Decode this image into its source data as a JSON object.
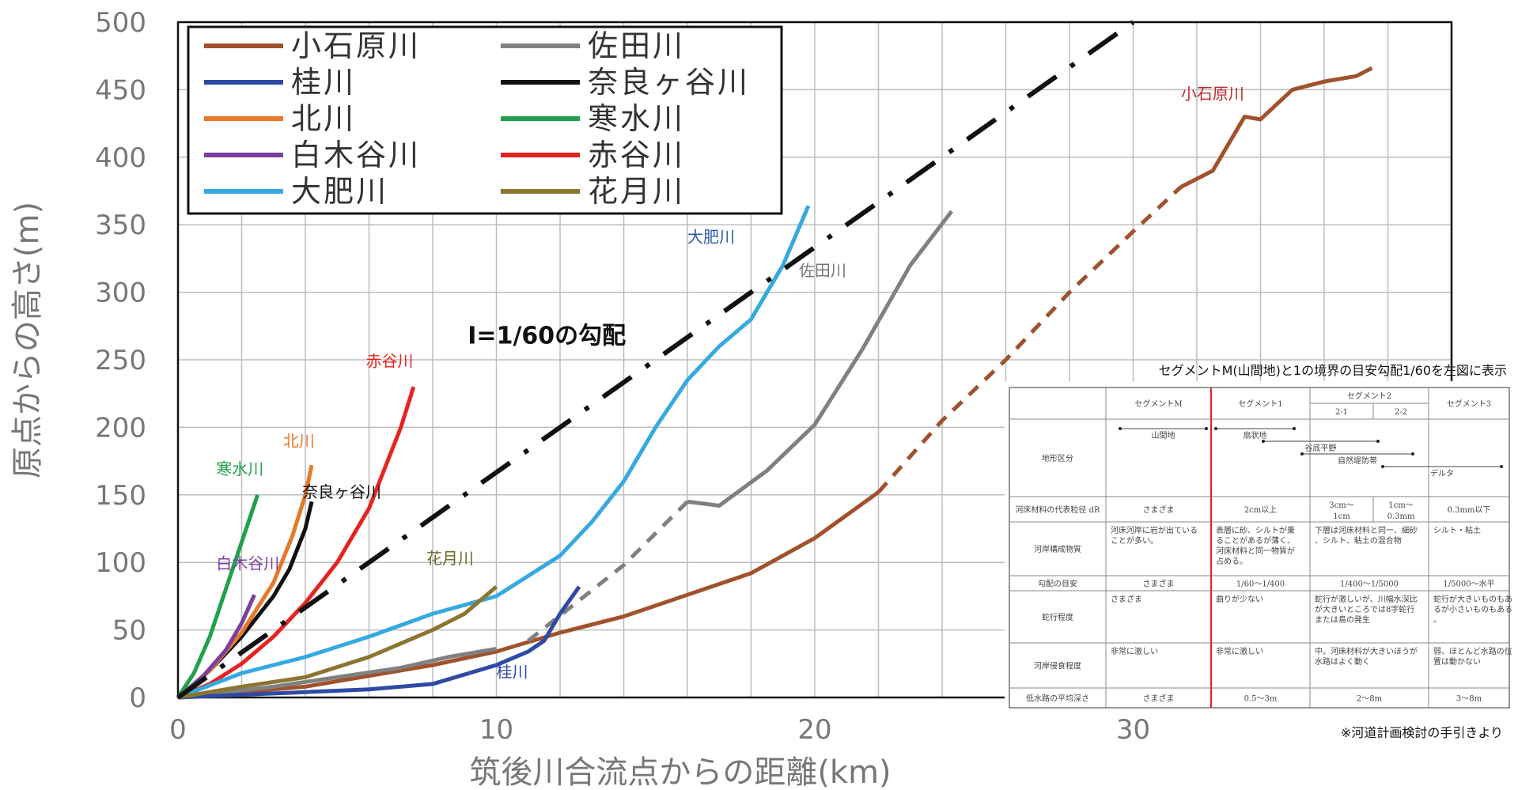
{
  "chart_data": {
    "type": "line",
    "xlabel": "筑後川合流点からの距離(km)",
    "ylabel": "原点からの高さ(m)",
    "xlim": [
      0,
      40
    ],
    "ylim": [
      0,
      500
    ],
    "xticks": [
      0,
      10,
      20,
      30
    ],
    "yticks": [
      0,
      50,
      100,
      150,
      200,
      250,
      300,
      350,
      400,
      450,
      500
    ],
    "grid": true,
    "legend_position": "top-left",
    "series": [
      {
        "name": "小石原川",
        "color": "#a0522d",
        "x": [
          0,
          2,
          4,
          6,
          8,
          10,
          12,
          14,
          16,
          18,
          20,
          21,
          22
        ],
        "y": [
          0,
          4,
          8,
          16,
          24,
          34,
          48,
          60,
          76,
          92,
          118,
          135,
          152
        ],
        "dashed_x": [
          22,
          24,
          26,
          28,
          30,
          31.5
        ],
        "dashed_y": [
          152,
          205,
          250,
          300,
          345,
          378
        ],
        "solid2_x": [
          31.5,
          32.5,
          33.5,
          34,
          35,
          36,
          37,
          37.5
        ],
        "solid2_y": [
          378,
          390,
          430,
          428,
          450,
          456,
          460,
          466
        ]
      },
      {
        "name": "佐田川",
        "color": "#808080",
        "x": [
          0,
          3,
          5,
          7,
          8.5,
          10,
          11,
          13,
          15,
          17,
          18.5,
          20,
          21.5,
          23,
          24.3
        ],
        "y": [
          0,
          8,
          15,
          22,
          30,
          36,
          42,
          68,
          108,
          142,
          168,
          202,
          258,
          320,
          360
        ],
        "dashed_x": [
          11,
          12.5,
          14,
          16
        ],
        "dashed_y": [
          42,
          70,
          98,
          145
        ],
        "dashed_start_index": 5
      },
      {
        "name": "桂川",
        "color": "#2e4aa5",
        "x": [
          0,
          3,
          6,
          8,
          10,
          11,
          11.5,
          12,
          12.6
        ],
        "y": [
          0,
          3,
          6,
          10,
          24,
          34,
          42,
          62,
          82
        ]
      },
      {
        "name": "奈良ヶ谷川",
        "color": "#111111",
        "x": [
          0,
          1,
          2,
          3,
          3.5,
          4,
          4.2
        ],
        "y": [
          0,
          20,
          45,
          75,
          95,
          125,
          145
        ]
      },
      {
        "name": "北川",
        "color": "#e8782a",
        "x": [
          0,
          1,
          2,
          3,
          3.6,
          4,
          4.2
        ],
        "y": [
          0,
          20,
          48,
          85,
          120,
          150,
          172
        ]
      },
      {
        "name": "寒水川",
        "color": "#22a04a",
        "x": [
          0,
          0.5,
          1,
          1.5,
          2,
          2.5
        ],
        "y": [
          0,
          18,
          45,
          80,
          115,
          150
        ]
      },
      {
        "name": "白木谷川",
        "color": "#7b3fa0",
        "x": [
          0,
          0.8,
          1.5,
          2,
          2.4
        ],
        "y": [
          0,
          16,
          35,
          55,
          76
        ]
      },
      {
        "name": "赤谷川",
        "color": "#e52420",
        "x": [
          0,
          1,
          2,
          3,
          4,
          5,
          6,
          6.5,
          7,
          7.4
        ],
        "y": [
          0,
          10,
          25,
          45,
          70,
          100,
          140,
          170,
          200,
          230
        ]
      },
      {
        "name": "大肥川",
        "color": "#36a9e1",
        "x": [
          0,
          2,
          4,
          6,
          8,
          10,
          12,
          13,
          14,
          15,
          16,
          17,
          18,
          19,
          19.8
        ],
        "y": [
          0,
          18,
          30,
          45,
          62,
          75,
          105,
          130,
          160,
          200,
          235,
          260,
          280,
          320,
          364
        ]
      },
      {
        "name": "花月川",
        "color": "#8b7530",
        "x": [
          0,
          2,
          4,
          6,
          8,
          9,
          10
        ],
        "y": [
          0,
          8,
          15,
          30,
          50,
          62,
          82
        ]
      }
    ],
    "reference_line": {
      "label": "I=1/60の勾配",
      "x": [
        0,
        30
      ],
      "y": [
        0,
        500
      ],
      "color": "#111111"
    },
    "annotations": [
      {
        "text": "小石原川",
        "x": 31.5,
        "y": 443,
        "color": "#c0272d"
      },
      {
        "text": "大肥川",
        "x": 16,
        "y": 337,
        "color": "#2e5aa8"
      },
      {
        "text": "佐田川",
        "x": 19.5,
        "y": 312,
        "color": "#777777"
      },
      {
        "text": "赤谷川",
        "x": 5.9,
        "y": 245,
        "color": "#e52420"
      },
      {
        "text": "北川",
        "x": 3.3,
        "y": 186,
        "color": "#e8782a"
      },
      {
        "text": "寒水川",
        "x": 1.2,
        "y": 165,
        "color": "#22a04a"
      },
      {
        "text": "奈良ヶ谷川",
        "x": 3.9,
        "y": 148,
        "color": "#111111"
      },
      {
        "text": "白木谷川",
        "x": 1.2,
        "y": 95,
        "color": "#7b3fa0"
      },
      {
        "text": "花月川",
        "x": 7.8,
        "y": 99,
        "color": "#6b6b2a"
      },
      {
        "text": "桂川",
        "x": 10,
        "y": 15,
        "color": "#2e4aa5"
      }
    ]
  },
  "inset": {
    "caption": "セグメントM(山間地)と1の境界の目安勾配1/60を左図に表示",
    "source": "※河道計画検討の手引きより",
    "headers": [
      "",
      "セグメントM",
      "セグメント1",
      "セグメント2",
      "セグメント3"
    ],
    "subheaders": [
      "2-1",
      "2-2"
    ],
    "rows": [
      {
        "label": "地形区分",
        "cells": [
          "山間地",
          "扇状地",
          "谷底平野",
          "自然堤防帯",
          "デルタ"
        ]
      },
      {
        "label": "河床材料の代表粒径 dR",
        "cells": [
          "さまざま",
          "2cm以上",
          "3cm〜1cm",
          "1cm〜0.3mm",
          "0.3mm以下"
        ]
      },
      {
        "label": "河岸構成物質",
        "cells": [
          "河床河岸に岩が出ていることが多い。",
          "表層に砂、シルトが乗ることがあるが薄く、河床材料と同一物質が占める。",
          "下層は河床材料と同一、細砂、シルト、粘土の混合物",
          "シルト・粘土"
        ]
      },
      {
        "label": "勾配の目安",
        "cells": [
          "さまざま",
          "1/60〜1/400",
          "1/400〜1/5000",
          "1/5000〜水平"
        ]
      },
      {
        "label": "蛇行程度",
        "cells": [
          "さまざま",
          "曲りが少ない",
          "蛇行が激しいが、川幅水深比が大きいところでは8字蛇行または島の発生",
          "蛇行が大きいものもあるが小さいものもある。"
        ]
      },
      {
        "label": "河岸侵食程度",
        "cells": [
          "非常に激しい",
          "非常に激しい",
          "中。河床材料が大きいほうが水路はよく動く",
          "弱、ほとんど水路の位置は動かない"
        ]
      },
      {
        "label": "低水路の平均深さ",
        "cells": [
          "さまざま",
          "0.5〜3m",
          "2〜8m",
          "3〜8m"
        ]
      }
    ]
  }
}
